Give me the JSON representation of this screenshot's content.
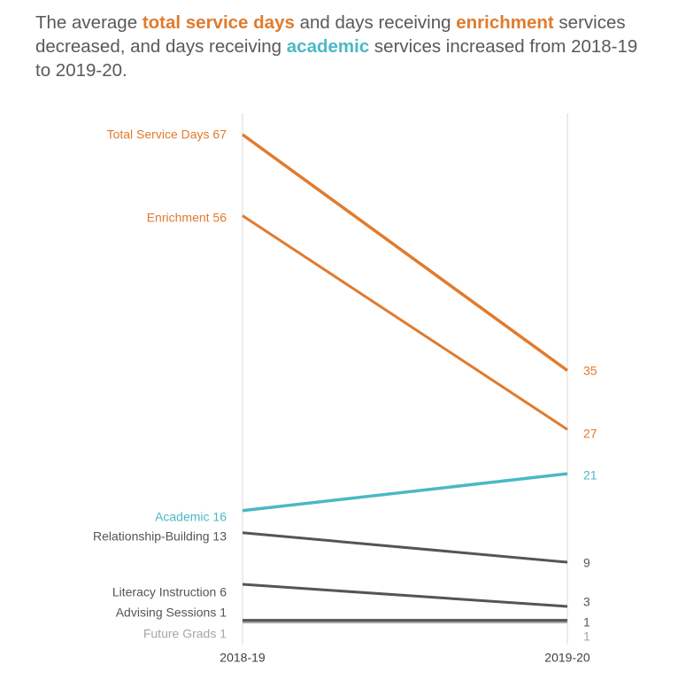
{
  "headline": {
    "t1": "The average ",
    "h1": "total service days",
    "t2": " and days receiving ",
    "h2": "enrichment",
    "t3": " services decreased, and days receiving ",
    "h3": "academic",
    "t4": " services increased from 2018-19 to 2019-20.",
    "colors": {
      "total": "#e07b2e",
      "enrichment": "#e07b2e",
      "academic": "#4bb8c5"
    }
  },
  "chart_data": {
    "type": "line",
    "x": [
      "2018-19",
      "2019-20"
    ],
    "series": [
      {
        "name": "Total Service Days",
        "values": [
          67,
          35
        ],
        "color": "#e07b2e",
        "width": 3.5
      },
      {
        "name": "Enrichment",
        "values": [
          56,
          27
        ],
        "color": "#e07b2e",
        "width": 3
      },
      {
        "name": "Academic",
        "values": [
          16,
          21
        ],
        "color": "#4bb8c5",
        "width": 3.5
      },
      {
        "name": "Relationship-Building",
        "values": [
          13,
          9
        ],
        "color": "#555555",
        "width": 3
      },
      {
        "name": "Literacy Instruction",
        "values": [
          6,
          3
        ],
        "color": "#555555",
        "width": 3
      },
      {
        "name": "Advising Sessions",
        "values": [
          1,
          1
        ],
        "color": "#555555",
        "width": 3
      },
      {
        "name": "Future Grads",
        "values": [
          1,
          1
        ],
        "color": "#a6a6a6",
        "width": 3
      }
    ],
    "start_labels": [
      {
        "text": "Total Service Days 67",
        "color": "#e07b2e"
      },
      {
        "text": "Enrichment 56",
        "color": "#e07b2e"
      },
      {
        "text": "Academic 16",
        "color": "#4bb8c5"
      },
      {
        "text": "Relationship-Building 13",
        "color": "#555555"
      },
      {
        "text": "Literacy Instruction 6",
        "color": "#555555"
      },
      {
        "text": "Advising Sessions 1",
        "color": "#555555"
      },
      {
        "text": "Future Grads 1",
        "color": "#a6a6a6"
      }
    ],
    "end_labels": [
      {
        "text": "35",
        "color": "#e07b2e"
      },
      {
        "text": "27",
        "color": "#e07b2e"
      },
      {
        "text": "21",
        "color": "#4bb8c5"
      },
      {
        "text": "9",
        "color": "#555555"
      },
      {
        "text": "3",
        "color": "#555555"
      },
      {
        "text": "1",
        "color": "#555555"
      },
      {
        "text": "1",
        "color": "#a6a6a6"
      }
    ],
    "ylim": [
      0,
      67
    ],
    "grid": false,
    "axis_color": "#d9d9d9"
  }
}
